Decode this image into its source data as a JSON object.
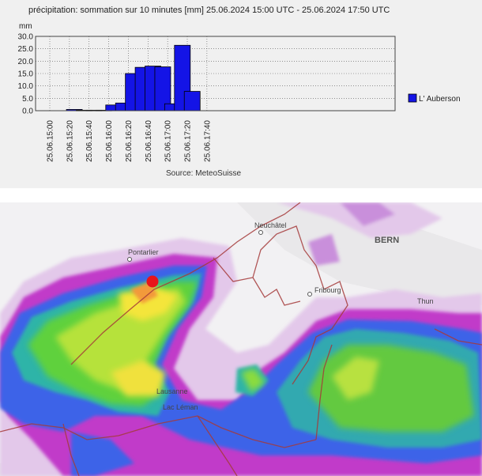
{
  "chart_data": {
    "type": "bar",
    "title": "précipitation: sommation sur 10 minutes [mm]  25.06.2024 15:00 UTC - 25.06.2024 17:50 UTC",
    "ylabel": "mm",
    "ylim": [
      0,
      30
    ],
    "yticks": [
      "0.0",
      "5.0",
      "10.0",
      "15.0",
      "20.0",
      "25.0",
      "30.0"
    ],
    "xticks": [
      "25.06.15:00",
      "25.06.15:20",
      "25.06.15:40",
      "25.06.16:00",
      "25.06.16:20",
      "25.06.16:40",
      "25.06.17:00",
      "25.06.17:20",
      "25.06.17:40"
    ],
    "x": [
      "15:00",
      "15:10",
      "15:20",
      "15:30",
      "15:40",
      "15:50",
      "16:00",
      "16:10",
      "16:20",
      "16:30",
      "16:40",
      "16:50",
      "17:00",
      "17:10",
      "17:20",
      "17:30",
      "17:40",
      "17:50"
    ],
    "series": [
      {
        "name": "L' Auberson",
        "values": [
          0,
          0,
          0.5,
          0.2,
          0.2,
          0.2,
          2.3,
          3.1,
          15.0,
          17.5,
          18.0,
          17.7,
          2.8,
          26.4,
          7.8,
          0,
          0,
          0
        ]
      }
    ],
    "color": "#1414e6",
    "grid": true,
    "legend": "right",
    "source": "Source: MeteoSuisse"
  },
  "map": {
    "labels": {
      "neuchatel": "Neuchâtel",
      "bern": "BERN",
      "pontarlier": "Pontarlier",
      "fribourg": "Fribourg",
      "lausanne": "Lausanne",
      "thun": "Thun",
      "lac": "Lac Léman"
    },
    "marker_color": "#e8141b"
  }
}
